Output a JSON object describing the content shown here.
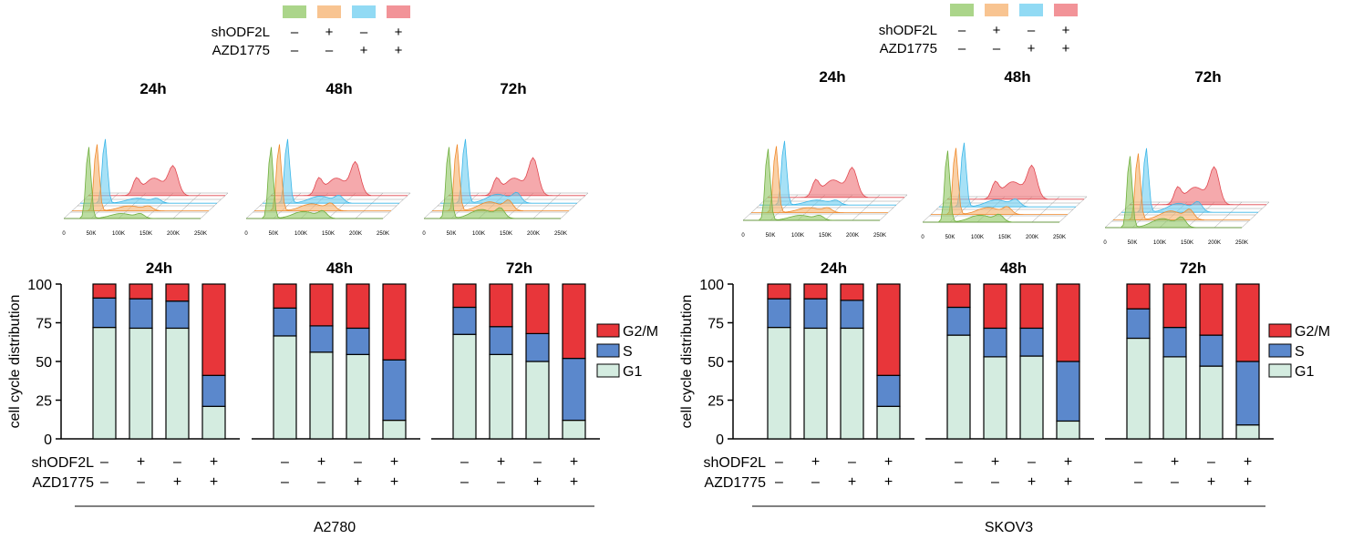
{
  "colors": {
    "g1_fill": "#d4ece0",
    "s_fill": "#5b88cc",
    "g2m_fill": "#e8363a",
    "hist_green": "#8fc763",
    "hist_orange": "#f5b06c",
    "hist_blue": "#6ccdf0",
    "hist_red": "#ee6f75"
  },
  "legend": {
    "g2m": "G2/M",
    "s": "S",
    "g1": "G1"
  },
  "row_labels": {
    "sh": "shODF2L",
    "azd": "AZD1775"
  },
  "cond_signs": {
    "sh": [
      "–",
      "+",
      "–",
      "+"
    ],
    "azd": [
      "–",
      "–",
      "+",
      "+"
    ]
  },
  "ylabel": "cell cycle distribution",
  "yticks": [
    "0",
    "25",
    "50",
    "75",
    "100"
  ],
  "xticks_hist": [
    "0",
    "50K",
    "100K",
    "150K",
    "200K",
    "250K"
  ],
  "chart_data": [
    {
      "type": "bar",
      "stacked": true,
      "cell_line": "A2780",
      "groups": [
        "24h",
        "48h",
        "72h"
      ],
      "series_order": [
        "G1",
        "S",
        "G2/M"
      ],
      "ylim": [
        0,
        100
      ],
      "ylabel": "cell cycle distribution",
      "data": [
        [
          [
            72,
            19,
            9
          ],
          [
            71.5,
            19,
            9.5
          ],
          [
            71.5,
            17.5,
            11
          ],
          [
            21,
            20,
            59
          ]
        ],
        [
          [
            66.5,
            18,
            15.5
          ],
          [
            56,
            17,
            27
          ],
          [
            54.5,
            17,
            28.5
          ],
          [
            12,
            39,
            49
          ]
        ],
        [
          [
            67.5,
            17.5,
            15
          ],
          [
            54.5,
            18,
            27.5
          ],
          [
            50,
            18,
            32
          ],
          [
            12,
            40,
            48
          ]
        ]
      ]
    },
    {
      "type": "bar",
      "stacked": true,
      "cell_line": "SKOV3",
      "groups": [
        "24h",
        "48h",
        "72h"
      ],
      "series_order": [
        "G1",
        "S",
        "G2/M"
      ],
      "ylim": [
        0,
        100
      ],
      "ylabel": "cell cycle distribution",
      "data": [
        [
          [
            72,
            18.5,
            9.5
          ],
          [
            71.5,
            19,
            9.5
          ],
          [
            71.5,
            18,
            10.5
          ],
          [
            21,
            20,
            59
          ]
        ],
        [
          [
            67,
            18,
            15
          ],
          [
            53,
            18.5,
            28.5
          ],
          [
            53.5,
            18,
            28.5
          ],
          [
            11.5,
            38.5,
            50
          ]
        ],
        [
          [
            65,
            19,
            16
          ],
          [
            53,
            19,
            28
          ],
          [
            47,
            20,
            33
          ],
          [
            9,
            41,
            50
          ]
        ]
      ]
    }
  ]
}
